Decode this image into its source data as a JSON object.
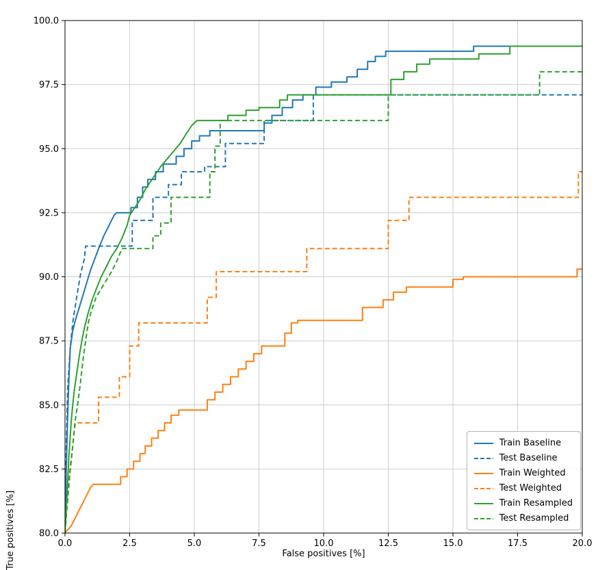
{
  "chart_data": {
    "type": "line",
    "title": "",
    "xlabel": "False positives [%]",
    "ylabel": "True positives [%]",
    "xlim": [
      0,
      20
    ],
    "ylim": [
      80,
      100
    ],
    "grid": true,
    "legend_position": "lower right",
    "xticks": [
      0,
      2.5,
      5,
      7.5,
      10,
      12.5,
      15,
      17.5,
      20
    ],
    "xtick_labels": [
      "0.0",
      "2.5",
      "5.0",
      "7.5",
      "10.0",
      "12.5",
      "15.0",
      "17.5",
      "20.0"
    ],
    "yticks": [
      80,
      82.5,
      85,
      87.5,
      90,
      92.5,
      95,
      97.5,
      100
    ],
    "ytick_labels": [
      "80.0",
      "82.5",
      "85.0",
      "87.5",
      "90.0",
      "92.5",
      "95.0",
      "97.5",
      "100.0"
    ],
    "series": [
      {
        "name": "Train Baseline",
        "color": "#1f77b4",
        "dash": "solid",
        "points": [
          [
            0,
            80
          ],
          [
            0.05,
            82.5
          ],
          [
            0.1,
            84.5
          ],
          [
            0.15,
            86
          ],
          [
            0.2,
            87.2
          ],
          [
            0.3,
            87.9
          ],
          [
            0.4,
            88.3
          ],
          [
            0.55,
            88.8
          ],
          [
            0.7,
            89.3
          ],
          [
            0.85,
            89.8
          ],
          [
            1.0,
            90.3
          ],
          [
            1.15,
            90.7
          ],
          [
            1.3,
            91.1
          ],
          [
            1.5,
            91.6
          ],
          [
            1.7,
            92.0
          ],
          [
            1.9,
            92.4
          ],
          [
            2.0,
            92.5
          ],
          [
            2.55,
            92.5
          ],
          [
            2.55,
            92.7
          ],
          [
            2.8,
            92.7
          ],
          [
            2.8,
            93.1
          ],
          [
            3.0,
            93.1
          ],
          [
            3.0,
            93.5
          ],
          [
            3.2,
            93.5
          ],
          [
            3.2,
            93.8
          ],
          [
            3.5,
            93.8
          ],
          [
            3.5,
            94.1
          ],
          [
            3.8,
            94.1
          ],
          [
            3.8,
            94.4
          ],
          [
            4.3,
            94.4
          ],
          [
            4.3,
            94.7
          ],
          [
            4.6,
            94.7
          ],
          [
            4.6,
            95.0
          ],
          [
            4.9,
            95.0
          ],
          [
            4.9,
            95.3
          ],
          [
            5.2,
            95.3
          ],
          [
            5.2,
            95.5
          ],
          [
            5.6,
            95.5
          ],
          [
            5.6,
            95.7
          ],
          [
            7.7,
            95.7
          ],
          [
            7.7,
            96.0
          ],
          [
            8.0,
            96.0
          ],
          [
            8.0,
            96.3
          ],
          [
            8.4,
            96.3
          ],
          [
            8.4,
            96.6
          ],
          [
            8.8,
            96.6
          ],
          [
            8.8,
            96.9
          ],
          [
            9.2,
            96.9
          ],
          [
            9.2,
            97.1
          ],
          [
            9.7,
            97.1
          ],
          [
            9.7,
            97.4
          ],
          [
            10.3,
            97.4
          ],
          [
            10.3,
            97.6
          ],
          [
            10.9,
            97.6
          ],
          [
            10.9,
            97.8
          ],
          [
            11.3,
            97.8
          ],
          [
            11.3,
            98.1
          ],
          [
            11.7,
            98.1
          ],
          [
            11.7,
            98.4
          ],
          [
            12.0,
            98.4
          ],
          [
            12.0,
            98.6
          ],
          [
            12.4,
            98.6
          ],
          [
            12.4,
            98.8
          ],
          [
            15.8,
            98.8
          ],
          [
            15.8,
            99.0
          ],
          [
            20,
            99.0
          ]
        ]
      },
      {
        "name": "Test Baseline",
        "color": "#1f77b4",
        "dash": "dashed",
        "points": [
          [
            0,
            80
          ],
          [
            0.05,
            83.5
          ],
          [
            0.1,
            85.6
          ],
          [
            0.2,
            87.2
          ],
          [
            0.3,
            88.2
          ],
          [
            0.45,
            89.2
          ],
          [
            0.6,
            90.1
          ],
          [
            0.75,
            90.7
          ],
          [
            0.8,
            91.2
          ],
          [
            2.6,
            91.2
          ],
          [
            2.6,
            92.2
          ],
          [
            3.4,
            92.2
          ],
          [
            3.4,
            93.1
          ],
          [
            4.0,
            93.1
          ],
          [
            4.0,
            93.6
          ],
          [
            4.5,
            93.6
          ],
          [
            4.5,
            94.1
          ],
          [
            5.4,
            94.1
          ],
          [
            5.4,
            94.3
          ],
          [
            6.2,
            94.3
          ],
          [
            6.2,
            95.2
          ],
          [
            7.7,
            95.2
          ],
          [
            7.7,
            96.1
          ],
          [
            9.6,
            96.1
          ],
          [
            9.6,
            97.1
          ],
          [
            20,
            97.1
          ]
        ]
      },
      {
        "name": "Train Weighted",
        "color": "#ff7f0e",
        "dash": "solid",
        "points": [
          [
            0,
            80
          ],
          [
            0.25,
            80.3
          ],
          [
            0.45,
            80.7
          ],
          [
            0.65,
            81.1
          ],
          [
            0.85,
            81.5
          ],
          [
            1.0,
            81.8
          ],
          [
            1.1,
            81.9
          ],
          [
            2.15,
            81.9
          ],
          [
            2.15,
            82.2
          ],
          [
            2.4,
            82.2
          ],
          [
            2.4,
            82.5
          ],
          [
            2.65,
            82.5
          ],
          [
            2.65,
            82.8
          ],
          [
            2.9,
            82.8
          ],
          [
            2.9,
            83.1
          ],
          [
            3.1,
            83.1
          ],
          [
            3.1,
            83.4
          ],
          [
            3.35,
            83.4
          ],
          [
            3.35,
            83.7
          ],
          [
            3.6,
            83.7
          ],
          [
            3.6,
            84.0
          ],
          [
            3.85,
            84.0
          ],
          [
            3.85,
            84.3
          ],
          [
            4.1,
            84.3
          ],
          [
            4.1,
            84.6
          ],
          [
            4.4,
            84.6
          ],
          [
            4.4,
            84.8
          ],
          [
            5.5,
            84.8
          ],
          [
            5.5,
            85.2
          ],
          [
            5.8,
            85.2
          ],
          [
            5.8,
            85.5
          ],
          [
            6.1,
            85.5
          ],
          [
            6.1,
            85.8
          ],
          [
            6.4,
            85.8
          ],
          [
            6.4,
            86.1
          ],
          [
            6.7,
            86.1
          ],
          [
            6.7,
            86.4
          ],
          [
            7.0,
            86.4
          ],
          [
            7.0,
            86.7
          ],
          [
            7.3,
            86.7
          ],
          [
            7.3,
            87.0
          ],
          [
            7.6,
            87.0
          ],
          [
            7.6,
            87.3
          ],
          [
            8.5,
            87.3
          ],
          [
            8.5,
            87.8
          ],
          [
            8.75,
            87.8
          ],
          [
            8.75,
            88.2
          ],
          [
            9.0,
            88.2
          ],
          [
            9.0,
            88.3
          ],
          [
            11.5,
            88.3
          ],
          [
            11.5,
            88.8
          ],
          [
            12.3,
            88.8
          ],
          [
            12.3,
            89.1
          ],
          [
            12.7,
            89.1
          ],
          [
            12.7,
            89.4
          ],
          [
            13.2,
            89.4
          ],
          [
            13.2,
            89.6
          ],
          [
            15.0,
            89.6
          ],
          [
            15.0,
            89.9
          ],
          [
            15.4,
            89.9
          ],
          [
            15.4,
            90.0
          ],
          [
            19.8,
            90.0
          ],
          [
            19.8,
            90.3
          ],
          [
            20,
            90.3
          ]
        ]
      },
      {
        "name": "Test Weighted",
        "color": "#ff7f0e",
        "dash": "dashed",
        "points": [
          [
            0,
            80
          ],
          [
            0.1,
            81.4
          ],
          [
            0.2,
            82.6
          ],
          [
            0.3,
            83.4
          ],
          [
            0.4,
            84.3
          ],
          [
            1.3,
            84.3
          ],
          [
            1.3,
            85.3
          ],
          [
            2.1,
            85.3
          ],
          [
            2.1,
            86.1
          ],
          [
            2.5,
            86.1
          ],
          [
            2.5,
            87.3
          ],
          [
            2.85,
            87.3
          ],
          [
            2.85,
            88.2
          ],
          [
            5.5,
            88.2
          ],
          [
            5.5,
            89.2
          ],
          [
            5.85,
            89.2
          ],
          [
            5.85,
            90.2
          ],
          [
            9.35,
            90.2
          ],
          [
            9.35,
            91.1
          ],
          [
            12.5,
            91.1
          ],
          [
            12.5,
            92.2
          ],
          [
            13.3,
            92.2
          ],
          [
            13.3,
            93.1
          ],
          [
            19.85,
            93.1
          ],
          [
            19.85,
            94.1
          ],
          [
            20,
            94.1
          ]
        ]
      },
      {
        "name": "Train Resampled",
        "color": "#2ca02c",
        "dash": "solid",
        "points": [
          [
            0,
            80
          ],
          [
            0.08,
            81.5
          ],
          [
            0.15,
            83
          ],
          [
            0.25,
            84.5
          ],
          [
            0.35,
            85.5
          ],
          [
            0.45,
            86.2
          ],
          [
            0.55,
            86.9
          ],
          [
            0.65,
            87.5
          ],
          [
            0.75,
            88.0
          ],
          [
            0.9,
            88.6
          ],
          [
            1.05,
            89.1
          ],
          [
            1.2,
            89.5
          ],
          [
            1.4,
            90.0
          ],
          [
            1.6,
            90.4
          ],
          [
            1.8,
            90.8
          ],
          [
            2.0,
            91.1
          ],
          [
            2.2,
            91.5
          ],
          [
            2.4,
            92.0
          ],
          [
            2.5,
            92.4
          ],
          [
            2.7,
            92.7
          ],
          [
            2.9,
            93.0
          ],
          [
            3.1,
            93.4
          ],
          [
            3.3,
            93.7
          ],
          [
            3.5,
            94.0
          ],
          [
            3.7,
            94.3
          ],
          [
            3.95,
            94.6
          ],
          [
            4.2,
            94.9
          ],
          [
            4.45,
            95.2
          ],
          [
            4.7,
            95.6
          ],
          [
            4.9,
            95.9
          ],
          [
            5.1,
            96.1
          ],
          [
            6.3,
            96.1
          ],
          [
            6.3,
            96.3
          ],
          [
            7.0,
            96.3
          ],
          [
            7.0,
            96.5
          ],
          [
            7.5,
            96.5
          ],
          [
            7.5,
            96.6
          ],
          [
            8.3,
            96.6
          ],
          [
            8.3,
            96.9
          ],
          [
            8.6,
            96.9
          ],
          [
            8.6,
            97.1
          ],
          [
            12.6,
            97.1
          ],
          [
            12.6,
            97.7
          ],
          [
            13.1,
            97.7
          ],
          [
            13.1,
            98.0
          ],
          [
            13.6,
            98.0
          ],
          [
            13.6,
            98.3
          ],
          [
            14.1,
            98.3
          ],
          [
            14.1,
            98.5
          ],
          [
            16.0,
            98.5
          ],
          [
            16.0,
            98.7
          ],
          [
            17.2,
            98.7
          ],
          [
            17.2,
            99.0
          ],
          [
            20,
            99.0
          ]
        ]
      },
      {
        "name": "Test Resampled",
        "color": "#2ca02c",
        "dash": "dashed",
        "points": [
          [
            0,
            80
          ],
          [
            0.08,
            81
          ],
          [
            0.18,
            82.2
          ],
          [
            0.28,
            83.2
          ],
          [
            0.38,
            84.3
          ],
          [
            0.5,
            85.1
          ],
          [
            0.6,
            85.9
          ],
          [
            0.7,
            86.8
          ],
          [
            0.8,
            87.5
          ],
          [
            0.9,
            88.2
          ],
          [
            1.0,
            88.6
          ],
          [
            1.2,
            89.2
          ],
          [
            1.5,
            89.7
          ],
          [
            1.8,
            90.2
          ],
          [
            2.0,
            90.6
          ],
          [
            2.2,
            91.1
          ],
          [
            3.4,
            91.1
          ],
          [
            3.4,
            91.6
          ],
          [
            3.7,
            91.6
          ],
          [
            3.7,
            92.1
          ],
          [
            4.1,
            92.1
          ],
          [
            4.1,
            93.1
          ],
          [
            5.6,
            93.1
          ],
          [
            5.6,
            94.1
          ],
          [
            5.8,
            94.1
          ],
          [
            5.8,
            95.1
          ],
          [
            6.0,
            95.1
          ],
          [
            6.0,
            96.1
          ],
          [
            12.5,
            96.1
          ],
          [
            12.5,
            97.1
          ],
          [
            18.35,
            97.1
          ],
          [
            18.35,
            98.0
          ],
          [
            20,
            98.0
          ]
        ]
      }
    ],
    "style": {
      "grid_color": "#cdcdcd",
      "axes_color": "#000000",
      "line_width": 2
    }
  }
}
